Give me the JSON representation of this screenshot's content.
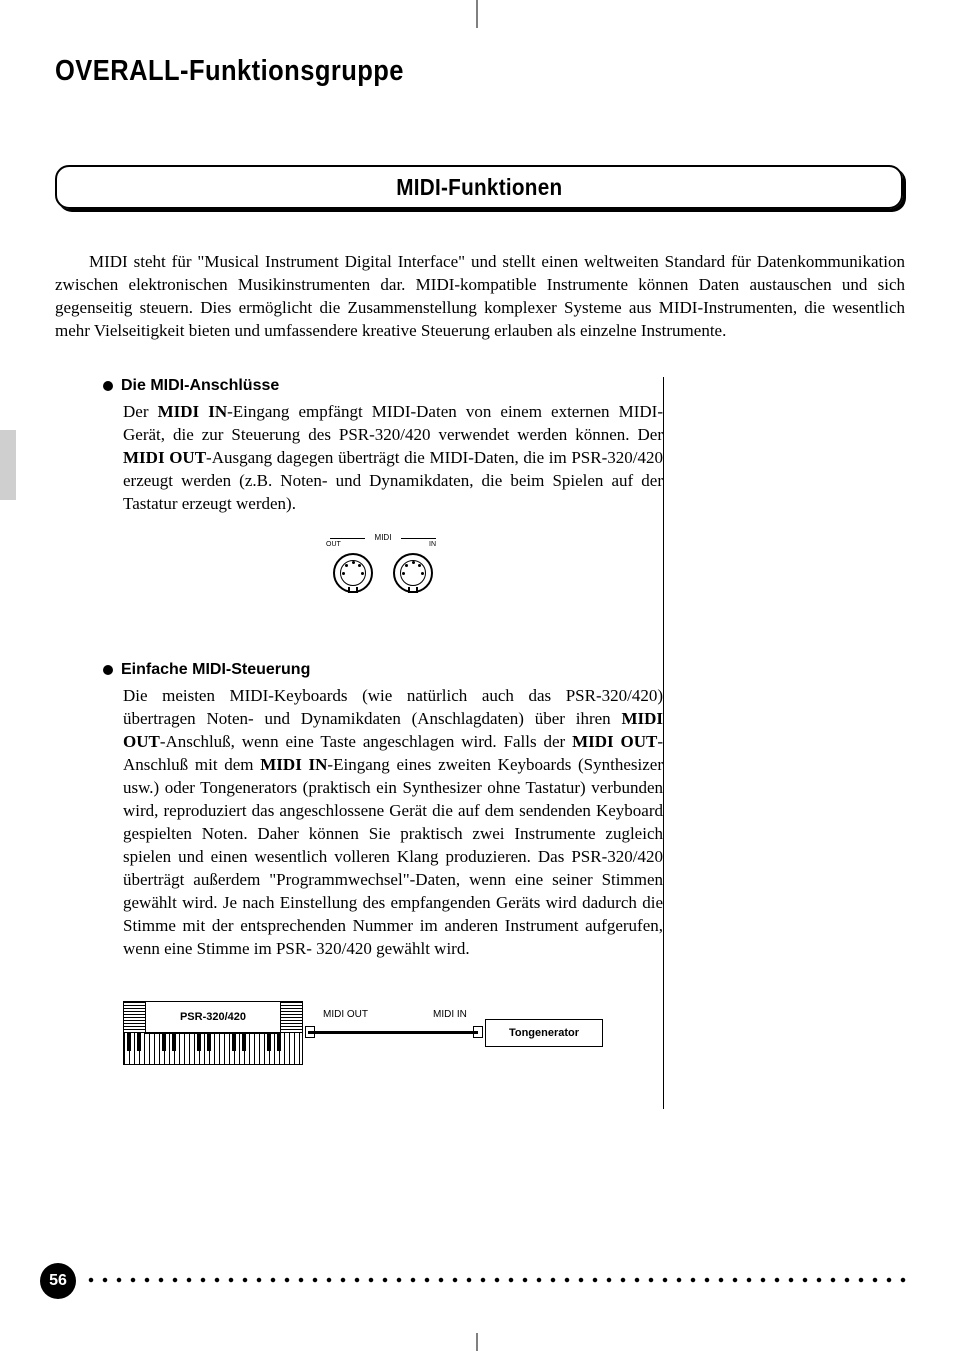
{
  "heading": "OVERALL-Funktionsgruppe",
  "subtitle": "MIDI-Funktionen",
  "intro": "MIDI steht für \"Musical Instrument Digital Interface\" und stellt einen weltweiten Standard für Datenkommunikation zwischen elektronischen Musikinstrumenten dar. MIDI-kompatible Instrumente können Daten austauschen und sich gegenseitig steuern. Dies ermöglicht die Zusammenstellung komplexer Systeme aus MIDI-Instrumenten, die wesentlich mehr Vielseitigkeit bieten und umfassendere kreative Steuerung erlauben als einzelne Instrumente.",
  "sections": {
    "s1": {
      "title": "Die MIDI-Anschlüsse",
      "body_pre": "Der ",
      "body_b1": "MIDI IN",
      "body_mid1": "-Eingang empfängt MIDI-Daten von einem externen MIDI-Gerät, die zur Steuerung des PSR-320/420 verwendet werden können. Der ",
      "body_b2": "MIDI OUT",
      "body_post": "-Ausgang dagegen überträgt die MIDI-Daten, die im PSR-320/420 erzeugt werden (z.B. Noten- und Dynamikdaten, die beim Spielen auf der Tastatur erzeugt werden)."
    },
    "s2": {
      "title": "Einfache MIDI-Steuerung",
      "body_pre": "Die meisten MIDI-Keyboards (wie natürlich auch das PSR-320/420) übertragen Noten- und Dynamikdaten (Anschlagdaten) über ihren ",
      "body_b1": "MIDI OUT",
      "body_mid1": "-Anschluß, wenn eine Taste angeschlagen wird. Falls der ",
      "body_b2": "MIDI OUT",
      "body_mid2": "-Anschluß mit dem ",
      "body_b3": "MIDI IN",
      "body_post": "-Eingang eines zweiten Keyboards (Synthesizer usw.) oder Tongenerators (praktisch ein Synthesizer ohne Tastatur) verbunden wird, reproduziert das angeschlossene Gerät die auf dem sendenden Keyboard gespielten Noten. Daher können Sie praktisch zwei Instrumente zugleich spielen und einen wesentlich volleren Klang produzieren. Das PSR-320/420 überträgt außerdem \"Programmwechsel\"-Daten, wenn eine seiner Stimmen gewählt wird. Je nach Einstellung des empfangenden Geräts wird dadurch die Stimme mit der entsprechenden Nummer im anderen Instrument aufgerufen, wenn eine Stimme im PSR- 320/420 gewählt wird."
    }
  },
  "figure1": {
    "midi": "MIDI",
    "out": "OUT",
    "in": "IN"
  },
  "figure2": {
    "keyboard": "PSR-320/420",
    "midi_out": "MIDI OUT",
    "midi_in": "MIDI IN",
    "tone": "Tongenerator"
  },
  "page_number": "56",
  "colors": {
    "text": "#000000",
    "bg": "#ffffff",
    "tab": "#cfcfcf"
  }
}
